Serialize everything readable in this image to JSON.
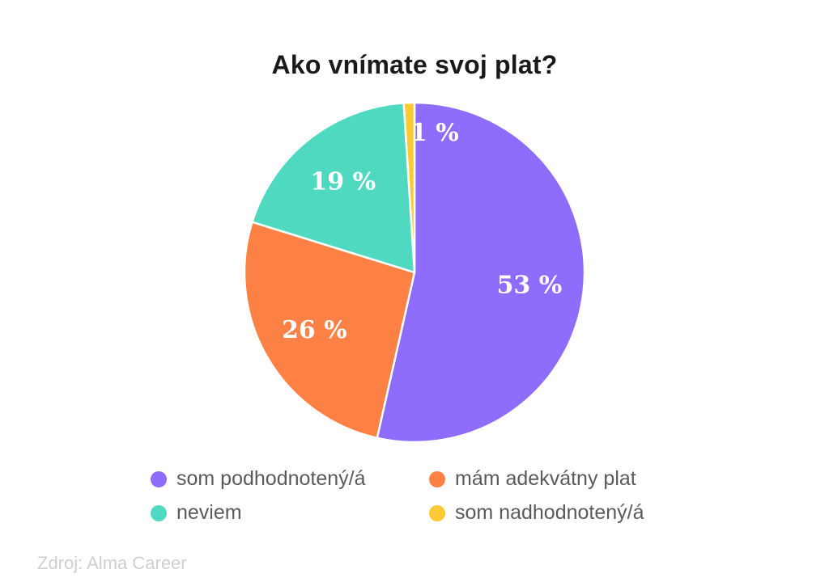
{
  "chart_data": {
    "type": "pie",
    "title": "Ako vnímate svoj plat?",
    "slices": [
      {
        "label": "som podhodnotený/á",
        "value": 53,
        "display": "53 %",
        "color": "#8e6cfc"
      },
      {
        "label": "mám adekvátny plat",
        "value": 26,
        "display": "26 %",
        "color": "#fd8144"
      },
      {
        "label": "neviem",
        "value": 19,
        "display": "19 %",
        "color": "#4fd9c0"
      },
      {
        "label": "som nadhodnotený/á",
        "value": 1,
        "display": "1 %",
        "color": "#fdc934"
      }
    ],
    "start_angle_deg": 0,
    "direction": "clockwise",
    "legend_position": "bottom"
  },
  "source": "Zdroj: Alma Career"
}
